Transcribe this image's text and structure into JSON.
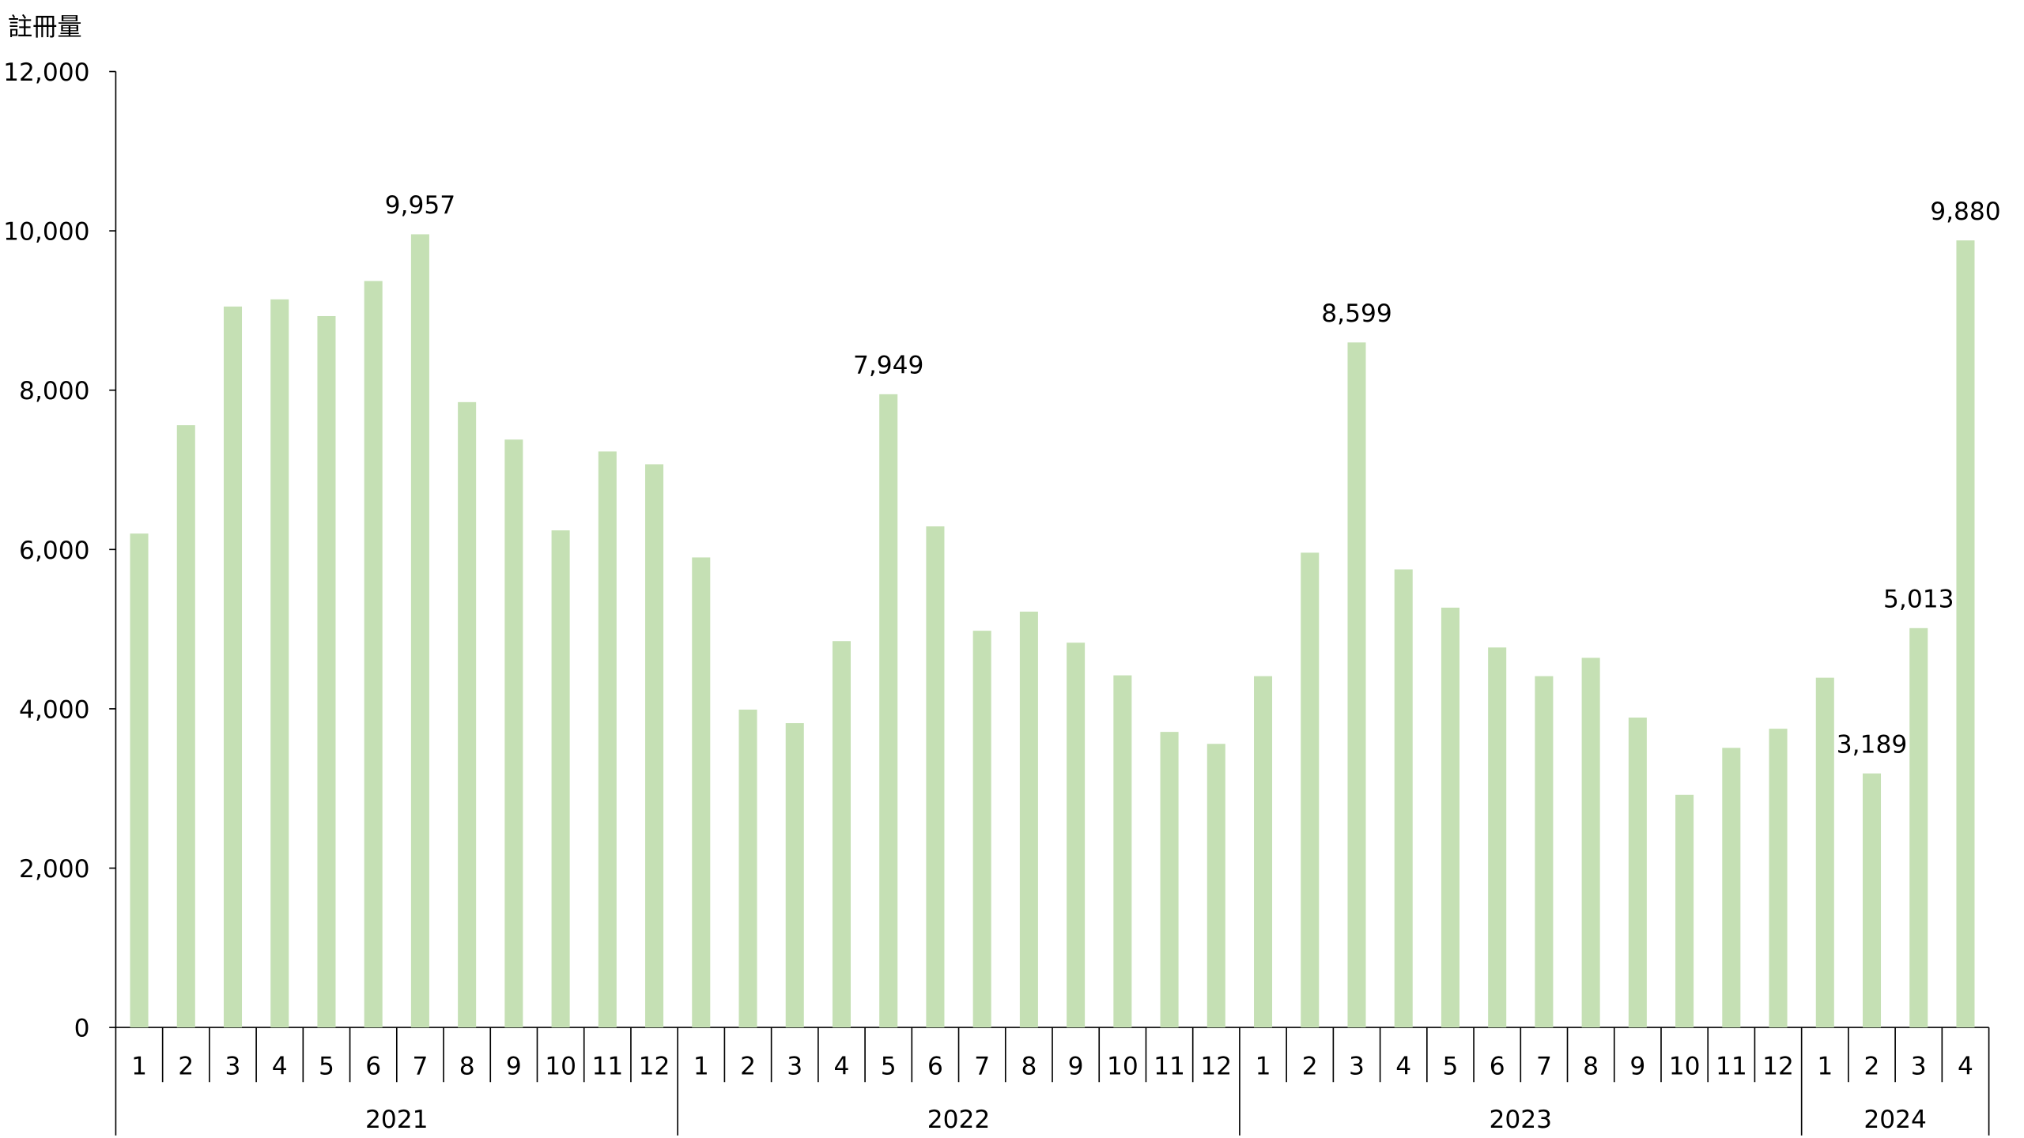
{
  "chart_data": {
    "type": "bar",
    "title": "",
    "ylabel": "註冊量",
    "xlabel": "",
    "ylim": [
      0,
      12000
    ],
    "yticks": [
      "0",
      "2,000",
      "4,000",
      "6,000",
      "8,000",
      "10,000",
      "12,000"
    ],
    "grid": false,
    "bar_color": "#c5e0b4",
    "groups": [
      {
        "year": "2021",
        "months": [
          "1",
          "2",
          "3",
          "4",
          "5",
          "6",
          "7",
          "8",
          "9",
          "10",
          "11",
          "12"
        ],
        "values": [
          6200,
          7560,
          9050,
          9140,
          8930,
          9370,
          9957,
          7850,
          7380,
          6240,
          7230,
          7070
        ]
      },
      {
        "year": "2022",
        "months": [
          "1",
          "2",
          "3",
          "4",
          "5",
          "6",
          "7",
          "8",
          "9",
          "10",
          "11",
          "12"
        ],
        "values": [
          5900,
          3990,
          3820,
          4850,
          7949,
          6290,
          4980,
          5220,
          4830,
          4420,
          3710,
          3560
        ]
      },
      {
        "year": "2023",
        "months": [
          "1",
          "2",
          "3",
          "4",
          "5",
          "6",
          "7",
          "8",
          "9",
          "10",
          "11",
          "12"
        ],
        "values": [
          4410,
          5960,
          8599,
          5750,
          5270,
          4770,
          4410,
          4640,
          3890,
          2920,
          3510,
          3750
        ]
      },
      {
        "year": "2024",
        "months": [
          "1",
          "2",
          "3",
          "4"
        ],
        "values": [
          4390,
          3189,
          5013,
          9880
        ]
      }
    ],
    "data_labels": [
      {
        "year": "2021",
        "month": "7",
        "text": "9,957"
      },
      {
        "year": "2022",
        "month": "5",
        "text": "7,949"
      },
      {
        "year": "2023",
        "month": "3",
        "text": "8,599"
      },
      {
        "year": "2024",
        "month": "2",
        "text": "3,189"
      },
      {
        "year": "2024",
        "month": "3",
        "text": "5,013"
      },
      {
        "year": "2024",
        "month": "4",
        "text": "9,880"
      }
    ]
  }
}
